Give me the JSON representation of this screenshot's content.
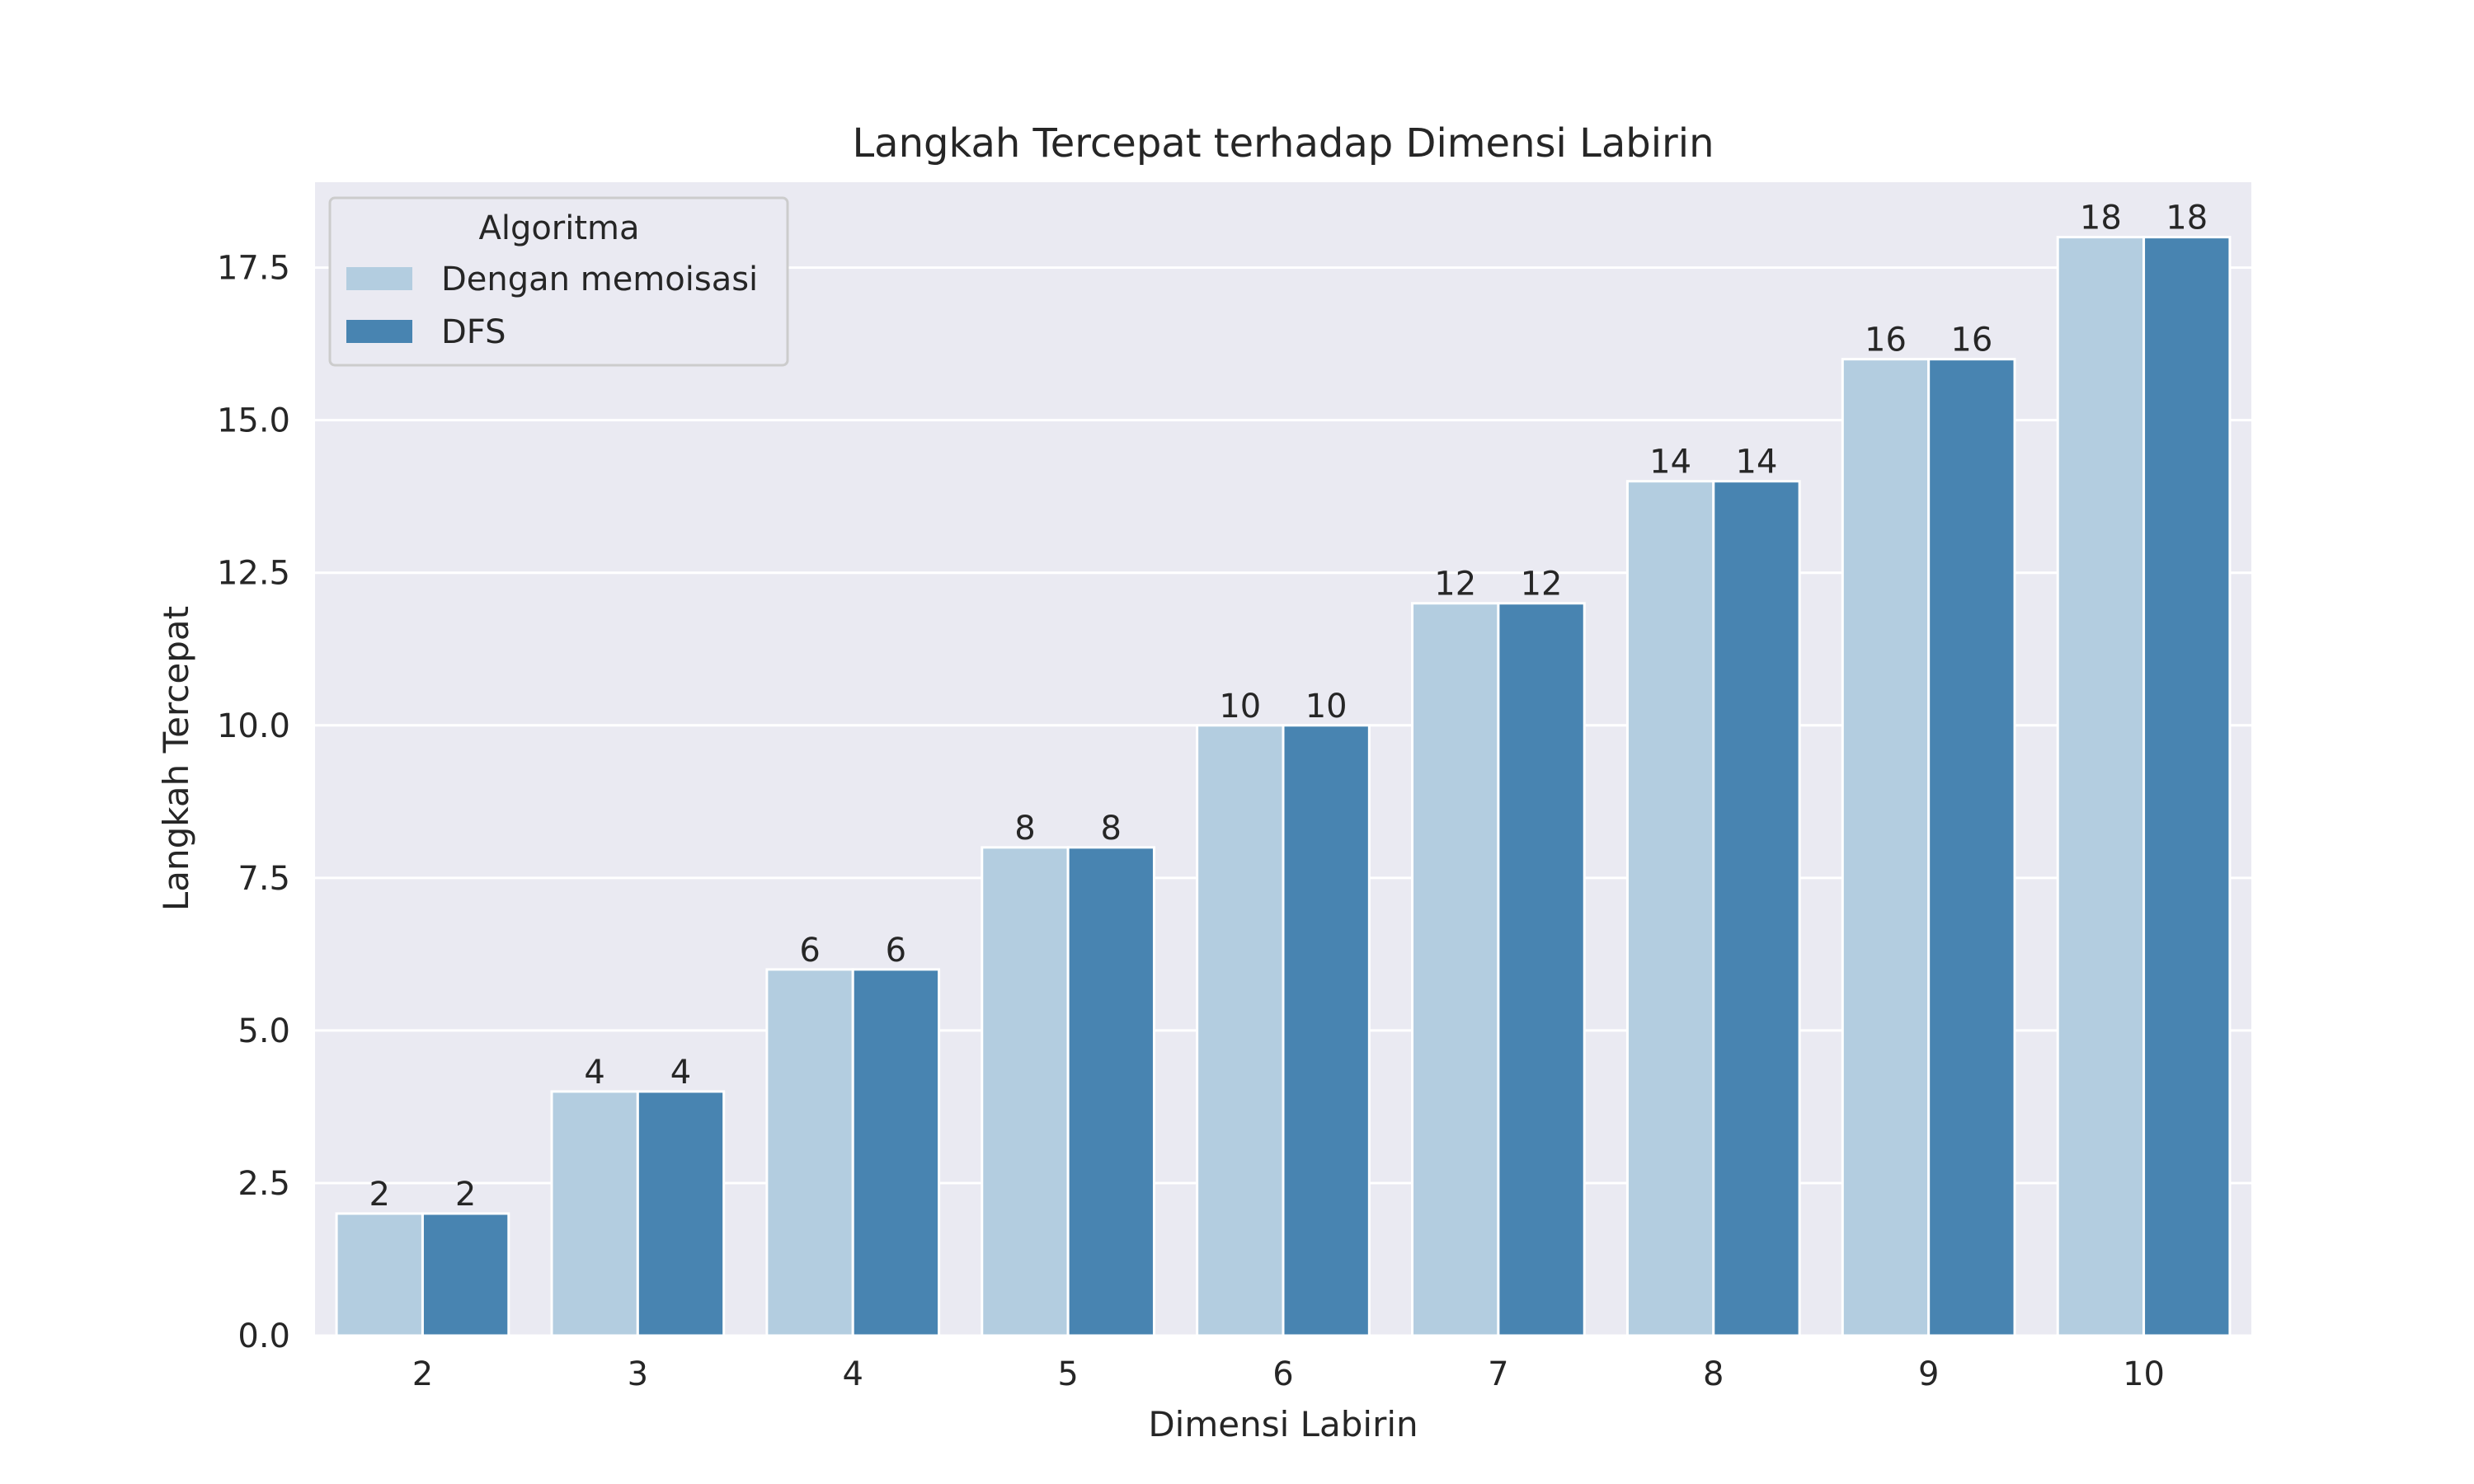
{
  "chart_data": {
    "type": "bar",
    "title": "Langkah Tercepat terhadap Dimensi Labirin",
    "xlabel": "Dimensi Labirin",
    "ylabel": "Langkah Tercepat",
    "categories": [
      "2",
      "3",
      "4",
      "5",
      "6",
      "7",
      "8",
      "9",
      "10"
    ],
    "series": [
      {
        "name": "Dengan memoisasi",
        "color": "#b3cde0",
        "values": [
          2,
          4,
          6,
          8,
          10,
          12,
          14,
          16,
          18
        ]
      },
      {
        "name": "DFS",
        "color": "#4884b1",
        "values": [
          2,
          4,
          6,
          8,
          10,
          12,
          14,
          16,
          18
        ]
      }
    ],
    "ylim": [
      0,
      18.9
    ],
    "yticks": [
      "0.0",
      "2.5",
      "5.0",
      "7.5",
      "10.0",
      "12.5",
      "15.0",
      "17.5"
    ],
    "grid": true,
    "background_color": "#eaeaf2",
    "legend": {
      "title": "Algoritma",
      "placement": "top-left"
    },
    "data_labels": true
  }
}
